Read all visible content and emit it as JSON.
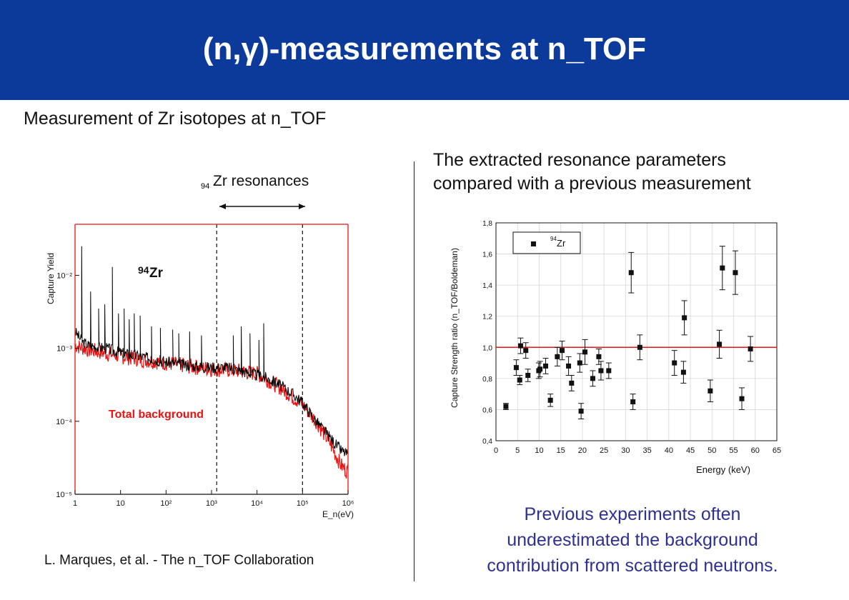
{
  "slide": {
    "title": "(n,γ)-measurements at n_TOF",
    "subtitle": "Measurement of Zr isotopes at n_TOF",
    "right_intro_line1": "The extracted resonance parameters",
    "right_intro_line2": "compared with a previous measurement",
    "credit": "L. Marques, et al. - The n_TOF Collaboration",
    "conclusion_line1": "Previous experiments often",
    "conclusion_line2": "underestimated the background",
    "conclusion_line3": "contribution from scattered neutrons.",
    "header_color": "#0b3a9b",
    "conclusion_color": "#2e3191"
  },
  "chart_data": [
    {
      "type": "line",
      "ylabel": "Capture Yield",
      "xlabel": "E_n(eV)",
      "xscale": "log",
      "yscale": "log",
      "xlim": [
        1,
        1000000
      ],
      "ylim": [
        1e-05,
        0.05
      ],
      "x_ticks": [
        "1",
        "10",
        "10²",
        "10³",
        "10⁴",
        "10⁵",
        "10⁶"
      ],
      "y_ticks": [
        "10⁻⁵",
        "10⁻⁴",
        "10⁻³",
        "10⁻²"
      ],
      "annotations": {
        "range_label_sup": "94",
        "range_label": "Zr resonances",
        "isotope_sup": "94",
        "isotope": "Zr",
        "background_label": "Total background"
      },
      "range_lines_eV": [
        1300,
        100000
      ],
      "series": [
        {
          "name": "94Zr",
          "color": "#000000",
          "x": [
            1,
            1.5,
            2,
            3,
            5,
            8,
            12,
            20,
            35,
            60,
            100,
            200,
            400,
            700,
            1000,
            2000,
            4000,
            8000,
            15000,
            30000,
            60000,
            100000,
            200000,
            400000,
            700000,
            1000000
          ],
          "y": [
            0.0017,
            0.0012,
            0.0011,
            0.00105,
            0.001,
            0.0009,
            0.00085,
            0.0008,
            0.00075,
            0.0007,
            0.00065,
            0.0006,
            0.00058,
            0.00055,
            0.00055,
            0.00055,
            0.0005,
            0.00045,
            0.0004,
            0.00032,
            0.00024,
            0.00018,
            0.0001,
            6e-05,
            4e-05,
            3.5e-05
          ],
          "peaks": [
            [
              1.4,
              0.025
            ],
            [
              2.2,
              0.006
            ],
            [
              3.3,
              0.0035
            ],
            [
              4.5,
              0.004
            ],
            [
              6.6,
              0.013
            ],
            [
              9,
              0.003
            ],
            [
              12,
              0.0035
            ],
            [
              15.5,
              0.0025
            ],
            [
              20,
              0.003
            ],
            [
              27,
              0.0028
            ],
            [
              48,
              0.002
            ],
            [
              75,
              0.0019
            ],
            [
              140,
              0.0018
            ],
            [
              190,
              0.0016
            ],
            [
              330,
              0.0017
            ],
            [
              600,
              0.0015
            ],
            [
              3000,
              0.0015
            ],
            [
              4500,
              0.002
            ],
            [
              7000,
              0.0016
            ],
            [
              11000,
              0.0013
            ],
            [
              14000,
              0.0022
            ]
          ]
        },
        {
          "name": "Total background",
          "color": "#ee1111",
          "x": [
            1,
            2,
            5,
            10,
            30,
            100,
            300,
            1000,
            3000,
            10000,
            30000,
            100000,
            200000,
            400000,
            700000,
            1000000
          ],
          "y": [
            0.0011,
            0.00095,
            0.00085,
            0.00078,
            0.0007,
            0.00063,
            0.00057,
            0.00052,
            0.0005,
            0.00045,
            0.0003,
            0.00017,
            0.0001,
            5e-05,
            2.5e-05,
            2e-05
          ]
        }
      ]
    },
    {
      "type": "scatter",
      "xlabel": "Energy (keV)",
      "ylabel": "Capture Strength ratio (n_TOF/Boldeman)",
      "xlim": [
        0,
        65
      ],
      "ylim": [
        0.4,
        1.8
      ],
      "x_ticks": [
        "0",
        "5",
        "10",
        "15",
        "20",
        "25",
        "30",
        "35",
        "40",
        "45",
        "50",
        "55",
        "60",
        "65"
      ],
      "y_ticks": [
        "0,4",
        "0,6",
        "0,8",
        "1,0",
        "1,2",
        "1,4",
        "1,6",
        "1,8"
      ],
      "reference_line": 1.0,
      "legend_sup": "94",
      "legend_label": "Zr",
      "legend": "top-left",
      "series": [
        {
          "name": "94Zr",
          "x": [
            2.3,
            4.7,
            5.5,
            5.7,
            6.9,
            7.4,
            9.9,
            10.2,
            11.5,
            12.6,
            14.2,
            15.3,
            16.8,
            17.5,
            19.4,
            19.7,
            20.6,
            22.4,
            23.8,
            24.3,
            26.1,
            31.3,
            31.7,
            33.3,
            41.3,
            43.4,
            43.6,
            49.6,
            51.7,
            52.4,
            55.4,
            56.9,
            58.9
          ],
          "y": [
            0.62,
            0.87,
            0.79,
            1.01,
            0.98,
            0.82,
            0.85,
            0.86,
            0.88,
            0.66,
            0.94,
            0.98,
            0.88,
            0.77,
            0.9,
            0.59,
            0.97,
            0.8,
            0.94,
            0.85,
            0.85,
            1.48,
            0.65,
            1.0,
            0.9,
            0.84,
            1.19,
            0.72,
            1.02,
            1.51,
            1.48,
            0.67,
            0.99
          ],
          "err": [
            0.02,
            0.05,
            0.03,
            0.05,
            0.05,
            0.04,
            0.05,
            0.05,
            0.05,
            0.04,
            0.06,
            0.06,
            0.06,
            0.05,
            0.06,
            0.05,
            0.08,
            0.05,
            0.05,
            0.06,
            0.05,
            0.13,
            0.05,
            0.08,
            0.08,
            0.07,
            0.11,
            0.07,
            0.09,
            0.14,
            0.14,
            0.07,
            0.08
          ]
        }
      ]
    }
  ]
}
